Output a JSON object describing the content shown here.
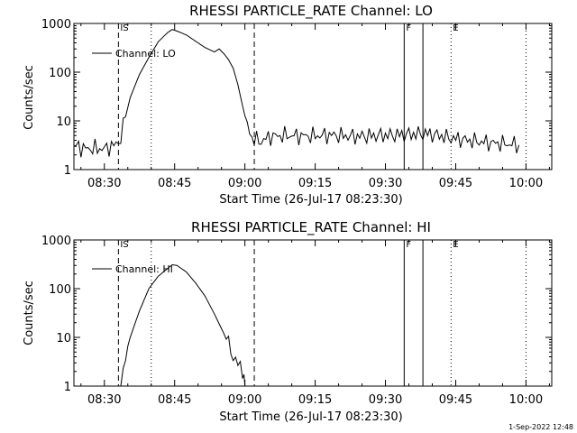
{
  "chart_data": [
    {
      "type": "line",
      "title": "RHESSI PARTICLE_RATE Channel: LO",
      "xlabel": "Start Time (26-Jul-17 08:23:30)",
      "ylabel": "Counts/sec",
      "yscale": "log",
      "ylim": [
        1,
        1000
      ],
      "xlim_minutes": [
        0,
        102
      ],
      "xtick_labels": [
        "08:30",
        "08:45",
        "09:00",
        "09:15",
        "09:30",
        "09:45",
        "10:00"
      ],
      "xtick_minutes": [
        6.5,
        21.5,
        36.5,
        51.5,
        66.5,
        81.5,
        96.5
      ],
      "ytick_labels": [
        "1",
        "10",
        "100",
        "1000"
      ],
      "ytick_values": [
        1,
        10,
        100,
        1000
      ],
      "legend": "Channel: LO",
      "markers": [
        {
          "label": "IS",
          "minute": 9.5,
          "style": "dashed",
          "labeled": true
        },
        {
          "label": "",
          "minute": 16.5,
          "style": "dotted",
          "labeled": false
        },
        {
          "label": "",
          "minute": 38.5,
          "style": "dashed",
          "labeled": false
        },
        {
          "label": "F",
          "minute": 70.5,
          "style": "solid",
          "labeled": true
        },
        {
          "label": "",
          "minute": 74.5,
          "style": "solid",
          "labeled": false
        },
        {
          "label": "E",
          "minute": 80.5,
          "style": "dotted",
          "labeled": true
        },
        {
          "label": "",
          "minute": 96.5,
          "style": "dotted",
          "labeled": false
        }
      ],
      "series": [
        {
          "name": "Channel: LO",
          "points": [
            [
              0,
              3
            ],
            [
              1,
              3
            ],
            [
              2,
              2.7
            ],
            [
              4,
              2.7
            ],
            [
              7,
              2.7
            ],
            [
              8,
              3.1
            ],
            [
              9,
              3.2
            ],
            [
              10,
              4.5
            ],
            [
              11,
              12
            ],
            [
              12,
              30
            ],
            [
              14,
              90
            ],
            [
              16,
              200
            ],
            [
              18,
              420
            ],
            [
              20,
              650
            ],
            [
              21,
              750
            ],
            [
              22,
              700
            ],
            [
              24,
              580
            ],
            [
              26,
              430
            ],
            [
              28,
              320
            ],
            [
              30,
              260
            ],
            [
              31,
              300
            ],
            [
              32,
              240
            ],
            [
              33,
              180
            ],
            [
              34,
              120
            ],
            [
              35,
              55
            ],
            [
              36,
              20
            ],
            [
              37,
              8
            ],
            [
              38,
              4.5
            ],
            [
              39,
              4
            ],
            [
              40,
              3.8
            ],
            [
              42,
              4.8
            ],
            [
              45,
              5
            ],
            [
              50,
              4.9
            ],
            [
              55,
              5.1
            ],
            [
              60,
              4.8
            ],
            [
              65,
              5
            ],
            [
              70,
              5.2
            ],
            [
              75,
              5.5
            ],
            [
              78,
              5
            ],
            [
              80,
              4.5
            ],
            [
              84,
              4
            ],
            [
              88,
              3.6
            ],
            [
              92,
              3.4
            ],
            [
              95,
              3.2
            ]
          ]
        }
      ]
    },
    {
      "type": "line",
      "title": "RHESSI PARTICLE_RATE Channel: HI",
      "xlabel": "Start Time (26-Jul-17 08:23:30)",
      "ylabel": "Counts/sec",
      "yscale": "log",
      "ylim": [
        1,
        1000
      ],
      "xlim_minutes": [
        0,
        102
      ],
      "xtick_labels": [
        "08:30",
        "08:45",
        "09:00",
        "09:15",
        "09:30",
        "09:45",
        "10:00"
      ],
      "xtick_minutes": [
        6.5,
        21.5,
        36.5,
        51.5,
        66.5,
        81.5,
        96.5
      ],
      "ytick_labels": [
        "1",
        "10",
        "100",
        "1000"
      ],
      "ytick_values": [
        1,
        10,
        100,
        1000
      ],
      "legend": "Channel: HI",
      "markers": [
        {
          "label": "IS",
          "minute": 9.5,
          "style": "dashed",
          "labeled": true
        },
        {
          "label": "",
          "minute": 16.5,
          "style": "dotted",
          "labeled": false
        },
        {
          "label": "",
          "minute": 38.5,
          "style": "dashed",
          "labeled": false
        },
        {
          "label": "F",
          "minute": 70.5,
          "style": "solid",
          "labeled": true
        },
        {
          "label": "",
          "minute": 74.5,
          "style": "solid",
          "labeled": false
        },
        {
          "label": "E",
          "minute": 80.5,
          "style": "dotted",
          "labeled": true
        },
        {
          "label": "",
          "minute": 96.5,
          "style": "dotted",
          "labeled": false
        }
      ],
      "series": [
        {
          "name": "Channel: HI",
          "points": [
            [
              10,
              1
            ],
            [
              10.5,
              1.5
            ],
            [
              11,
              4
            ],
            [
              12,
              10
            ],
            [
              14,
              35
            ],
            [
              16,
              100
            ],
            [
              18,
              180
            ],
            [
              20,
              260
            ],
            [
              21,
              310
            ],
            [
              22,
              300
            ],
            [
              24,
              220
            ],
            [
              26,
              130
            ],
            [
              28,
              70
            ],
            [
              30,
              30
            ],
            [
              32,
              12
            ],
            [
              33,
              7
            ],
            [
              34,
              4
            ],
            [
              35,
              2.8
            ],
            [
              36,
              2.2
            ],
            [
              36.3,
              1.5
            ],
            [
              36.5,
              1
            ]
          ]
        }
      ]
    }
  ],
  "footer": {
    "timestamp": "1-Sep-2022 12:48"
  }
}
